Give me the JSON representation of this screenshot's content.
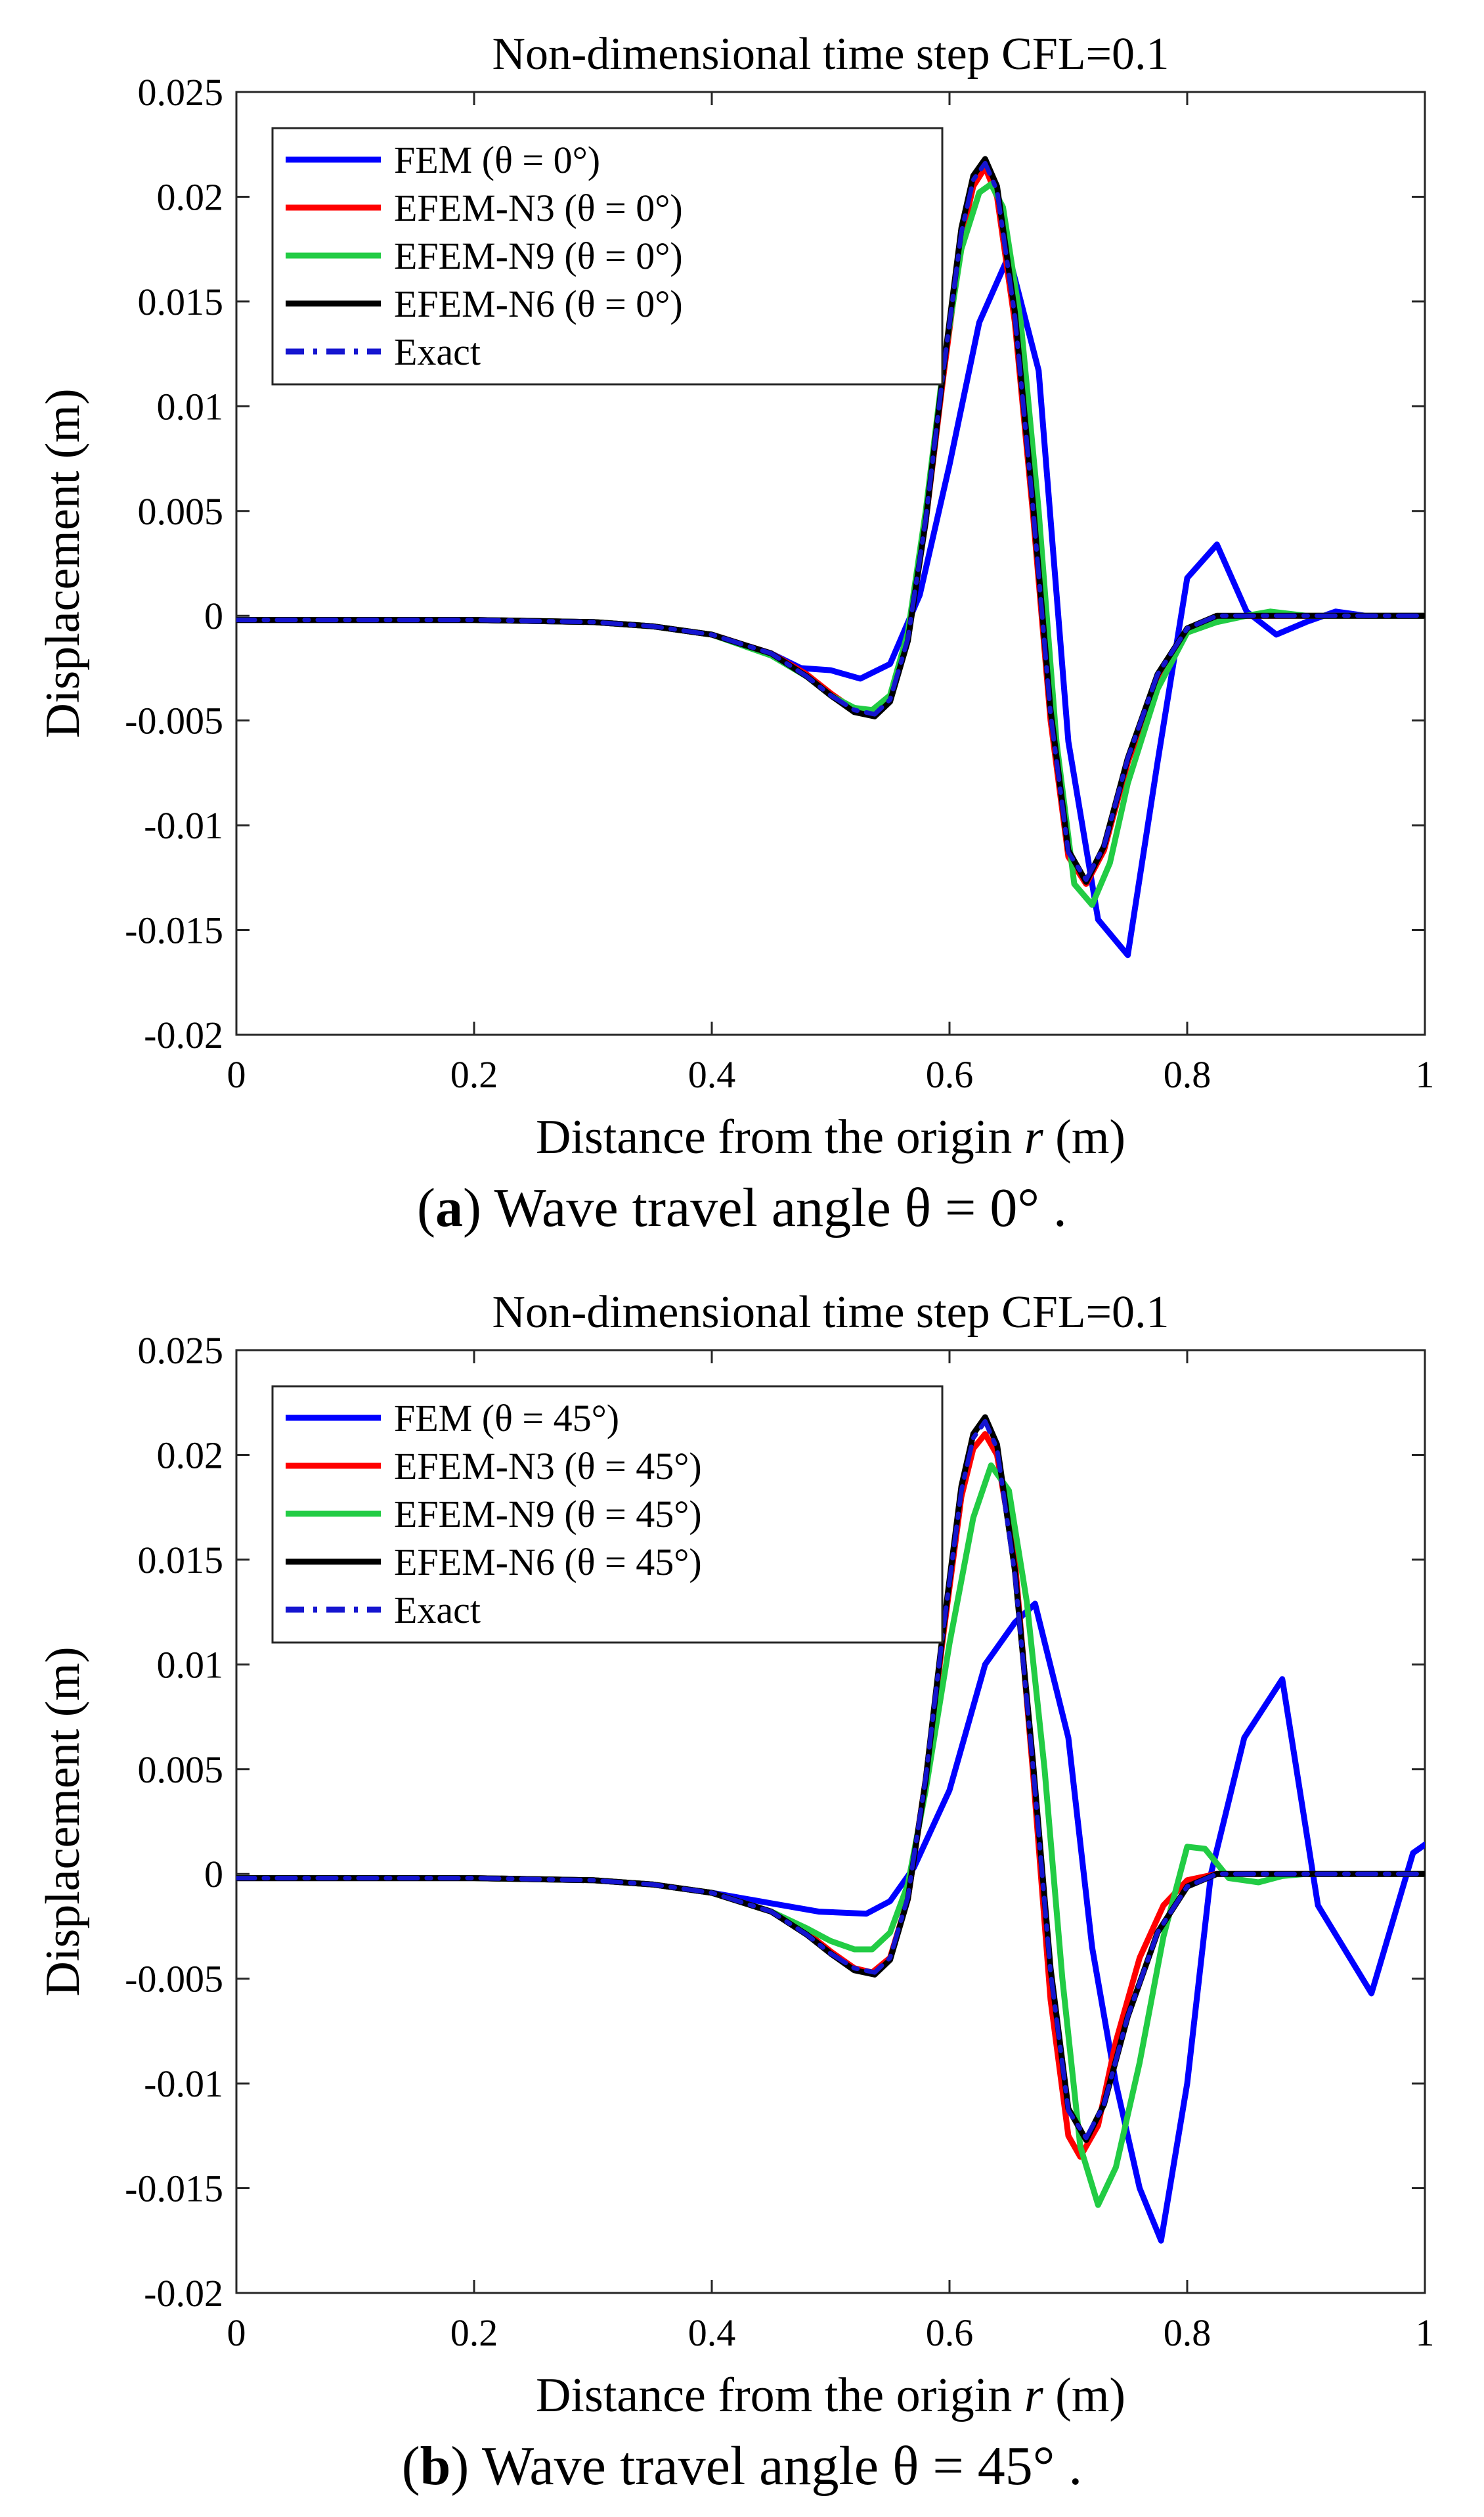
{
  "chart_data": [
    {
      "type": "line",
      "title": "Non-dimensional time step CFL=0.1",
      "xlabel_prefix": "Distance from the origin ",
      "xlabel_var": "r",
      "xlabel_suffix": " (m)",
      "ylabel": "Displacement (m)",
      "xlim": [
        0,
        1
      ],
      "ylim": [
        -0.02,
        0.025
      ],
      "xticks": [
        0,
        0.2,
        0.4,
        0.6,
        0.8,
        1
      ],
      "xtick_labels": [
        "0",
        "0.2",
        "0.4",
        "0.6",
        "0.8",
        "1"
      ],
      "yticks": [
        -0.02,
        -0.015,
        -0.01,
        -0.005,
        0,
        0.005,
        0.01,
        0.015,
        0.02,
        0.025
      ],
      "ytick_labels": [
        "-0.02",
        "-0.015",
        "-0.01",
        "-0.005",
        "0",
        "0.005",
        "0.01",
        "0.015",
        "0.02",
        "0.025"
      ],
      "legend_position": "top-left",
      "caption": {
        "label": "a",
        "text": ") Wave travel angle   θ = 0° ."
      },
      "series": [
        {
          "name": "FEM (θ = 0°)",
          "color": "#0000ff",
          "dashed": false,
          "x": [
            0,
            0.1,
            0.2,
            0.3,
            0.35,
            0.4,
            0.45,
            0.475,
            0.5,
            0.525,
            0.55,
            0.575,
            0.6,
            0.625,
            0.65,
            0.675,
            0.7,
            0.725,
            0.75,
            0.775,
            0.8,
            0.825,
            0.85,
            0.875,
            0.9,
            0.925,
            0.95,
            1.0
          ],
          "y": [
            -0.0002,
            -0.0002,
            -0.0002,
            -0.0003,
            -0.0005,
            -0.0009,
            -0.0018,
            -0.0025,
            -0.0026,
            -0.003,
            -0.0023,
            0.001,
            0.0072,
            0.014,
            0.0172,
            0.0117,
            -0.006,
            -0.0145,
            -0.0162,
            -0.007,
            0.0018,
            0.0034,
            0.0002,
            -0.0009,
            -0.0003,
            0.0002,
            0.0,
            0.0
          ]
        },
        {
          "name": "EFEM-N3 (θ = 0°)",
          "color": "#ff0000",
          "dashed": false,
          "x": [
            0,
            0.1,
            0.2,
            0.3,
            0.35,
            0.4,
            0.45,
            0.48,
            0.5,
            0.52,
            0.535,
            0.55,
            0.565,
            0.58,
            0.595,
            0.61,
            0.62,
            0.63,
            0.64,
            0.655,
            0.67,
            0.685,
            0.7,
            0.715,
            0.73,
            0.75,
            0.775,
            0.8,
            0.825,
            0.85,
            0.875,
            0.9,
            1.0
          ],
          "y": [
            -0.0002,
            -0.0002,
            -0.0002,
            -0.0003,
            -0.0005,
            -0.0009,
            -0.0018,
            -0.0028,
            -0.0037,
            -0.0045,
            -0.0047,
            -0.004,
            -0.001,
            0.0045,
            0.0115,
            0.018,
            0.0205,
            0.0214,
            0.02,
            0.014,
            0.005,
            -0.005,
            -0.0115,
            -0.0128,
            -0.0112,
            -0.007,
            -0.003,
            -0.0008,
            -0.0002,
            0.0,
            0.0,
            0.0,
            0.0
          ]
        },
        {
          "name": "EFEM-N9 (θ = 0°)",
          "color": "#22cc44",
          "dashed": false,
          "x": [
            0,
            0.1,
            0.2,
            0.3,
            0.35,
            0.4,
            0.45,
            0.48,
            0.5,
            0.52,
            0.535,
            0.55,
            0.565,
            0.58,
            0.595,
            0.61,
            0.625,
            0.635,
            0.645,
            0.66,
            0.675,
            0.69,
            0.705,
            0.72,
            0.735,
            0.75,
            0.775,
            0.8,
            0.825,
            0.85,
            0.87,
            0.9,
            1.0
          ],
          "y": [
            -0.0002,
            -0.0002,
            -0.0002,
            -0.0003,
            -0.0005,
            -0.0009,
            -0.0019,
            -0.0029,
            -0.0038,
            -0.0044,
            -0.0045,
            -0.0038,
            -0.0008,
            0.005,
            0.012,
            0.0175,
            0.0202,
            0.0206,
            0.0195,
            0.014,
            0.005,
            -0.006,
            -0.0128,
            -0.0138,
            -0.0118,
            -0.008,
            -0.0035,
            -0.0008,
            -0.0003,
            0.0,
            0.0002,
            0.0,
            0.0
          ]
        },
        {
          "name": "EFEM-N6 (θ = 0°)",
          "color": "#000000",
          "dashed": false,
          "x": [
            0,
            0.1,
            0.2,
            0.3,
            0.35,
            0.4,
            0.45,
            0.48,
            0.5,
            0.52,
            0.537,
            0.55,
            0.565,
            0.58,
            0.595,
            0.61,
            0.62,
            0.63,
            0.64,
            0.655,
            0.67,
            0.685,
            0.7,
            0.715,
            0.73,
            0.75,
            0.775,
            0.8,
            0.825,
            0.85,
            1.0
          ],
          "y": [
            -0.0002,
            -0.0002,
            -0.0002,
            -0.0003,
            -0.0005,
            -0.0009,
            -0.0018,
            -0.0029,
            -0.0038,
            -0.0046,
            -0.0048,
            -0.0041,
            -0.0012,
            0.0045,
            0.0118,
            0.0185,
            0.021,
            0.0218,
            0.0205,
            0.0145,
            0.0055,
            -0.0045,
            -0.0112,
            -0.0127,
            -0.011,
            -0.0068,
            -0.0028,
            -0.0006,
            0.0,
            0.0,
            0.0
          ]
        },
        {
          "name": "Exact",
          "color": "#1515d0",
          "dashed": true,
          "x": [
            0,
            0.1,
            0.2,
            0.3,
            0.35,
            0.4,
            0.45,
            0.48,
            0.5,
            0.52,
            0.537,
            0.55,
            0.565,
            0.58,
            0.595,
            0.61,
            0.62,
            0.63,
            0.64,
            0.655,
            0.67,
            0.685,
            0.7,
            0.715,
            0.73,
            0.75,
            0.775,
            0.8,
            0.825,
            0.85,
            1.0
          ],
          "y": [
            -0.0002,
            -0.0002,
            -0.0002,
            -0.0003,
            -0.0005,
            -0.0009,
            -0.0018,
            -0.0029,
            -0.0038,
            -0.0045,
            -0.0047,
            -0.004,
            -0.0011,
            0.0046,
            0.0118,
            0.0183,
            0.0208,
            0.0216,
            0.0203,
            0.0143,
            0.0053,
            -0.0047,
            -0.0113,
            -0.0126,
            -0.011,
            -0.0068,
            -0.0028,
            -0.0006,
            0.0,
            0.0,
            0.0
          ]
        }
      ]
    },
    {
      "type": "line",
      "title": "Non-dimensional time step CFL=0.1",
      "xlabel_prefix": "Distance from the origin ",
      "xlabel_var": "r",
      "xlabel_suffix": " (m)",
      "ylabel": "Displacement (m)",
      "xlim": [
        0,
        1
      ],
      "ylim": [
        -0.02,
        0.025
      ],
      "xticks": [
        0,
        0.2,
        0.4,
        0.6,
        0.8,
        1
      ],
      "xtick_labels": [
        "0",
        "0.2",
        "0.4",
        "0.6",
        "0.8",
        "1"
      ],
      "yticks": [
        -0.02,
        -0.015,
        -0.01,
        -0.005,
        0,
        0.005,
        0.01,
        0.015,
        0.02,
        0.025
      ],
      "ytick_labels": [
        "-0.02",
        "-0.015",
        "-0.01",
        "-0.005",
        "0",
        "0.005",
        "0.01",
        "0.015",
        "0.02",
        "0.025"
      ],
      "legend_position": "top-left",
      "caption": {
        "label": "b",
        "text": ") Wave travel angle   θ = 45° ."
      },
      "series": [
        {
          "name": "FEM (θ = 45°)",
          "color": "#0000ff",
          "dashed": false,
          "x": [
            0,
            0.1,
            0.2,
            0.3,
            0.35,
            0.4,
            0.45,
            0.49,
            0.53,
            0.55,
            0.57,
            0.6,
            0.63,
            0.655,
            0.672,
            0.7,
            0.72,
            0.74,
            0.76,
            0.778,
            0.8,
            0.82,
            0.848,
            0.88,
            0.91,
            0.955,
            0.99,
            1.0
          ],
          "y": [
            -0.0002,
            -0.0002,
            -0.0002,
            -0.0003,
            -0.0005,
            -0.0009,
            -0.0014,
            -0.0018,
            -0.0019,
            -0.0013,
            0.0003,
            0.004,
            0.01,
            0.012,
            0.0129,
            0.0065,
            -0.0035,
            -0.01,
            -0.015,
            -0.0175,
            -0.01,
            0.0,
            0.0065,
            0.0093,
            -0.0015,
            -0.0057,
            0.001,
            0.0014
          ]
        },
        {
          "name": "EFEM-N3 (θ = 45°)",
          "color": "#ff0000",
          "dashed": false,
          "x": [
            0,
            0.1,
            0.2,
            0.3,
            0.35,
            0.4,
            0.45,
            0.48,
            0.5,
            0.52,
            0.535,
            0.55,
            0.565,
            0.58,
            0.595,
            0.61,
            0.62,
            0.63,
            0.64,
            0.655,
            0.67,
            0.685,
            0.7,
            0.71,
            0.725,
            0.74,
            0.76,
            0.78,
            0.8,
            0.825,
            0.85,
            1.0
          ],
          "y": [
            -0.0002,
            -0.0002,
            -0.0002,
            -0.0003,
            -0.0005,
            -0.0009,
            -0.0018,
            -0.0028,
            -0.0037,
            -0.0045,
            -0.0047,
            -0.004,
            -0.0012,
            0.0045,
            0.0115,
            0.018,
            0.0203,
            0.021,
            0.02,
            0.015,
            0.005,
            -0.006,
            -0.0125,
            -0.0135,
            -0.012,
            -0.008,
            -0.004,
            -0.0015,
            -0.0003,
            0.0,
            0.0,
            0.0
          ]
        },
        {
          "name": "EFEM-N9 (θ = 45°)",
          "color": "#22cc44",
          "dashed": false,
          "x": [
            0,
            0.1,
            0.2,
            0.3,
            0.35,
            0.4,
            0.45,
            0.48,
            0.5,
            0.52,
            0.535,
            0.55,
            0.565,
            0.58,
            0.6,
            0.62,
            0.635,
            0.65,
            0.665,
            0.68,
            0.695,
            0.71,
            0.725,
            0.74,
            0.76,
            0.78,
            0.8,
            0.815,
            0.835,
            0.86,
            0.88,
            0.9,
            1.0
          ],
          "y": [
            -0.0002,
            -0.0002,
            -0.0002,
            -0.0003,
            -0.0005,
            -0.0009,
            -0.0018,
            -0.0026,
            -0.0032,
            -0.0036,
            -0.0036,
            -0.0028,
            -0.0005,
            0.004,
            0.011,
            0.017,
            0.0195,
            0.0183,
            0.013,
            0.005,
            -0.005,
            -0.013,
            -0.0158,
            -0.014,
            -0.009,
            -0.003,
            0.0013,
            0.0012,
            -0.0002,
            -0.0004,
            -0.0001,
            0.0,
            0.0
          ]
        },
        {
          "name": "EFEM-N6 (θ = 45°)",
          "color": "#000000",
          "dashed": false,
          "x": [
            0,
            0.1,
            0.2,
            0.3,
            0.35,
            0.4,
            0.45,
            0.48,
            0.5,
            0.52,
            0.537,
            0.55,
            0.565,
            0.58,
            0.595,
            0.61,
            0.62,
            0.63,
            0.64,
            0.655,
            0.67,
            0.685,
            0.7,
            0.715,
            0.73,
            0.75,
            0.775,
            0.8,
            0.825,
            0.85,
            1.0
          ],
          "y": [
            -0.0002,
            -0.0002,
            -0.0002,
            -0.0003,
            -0.0005,
            -0.0009,
            -0.0018,
            -0.0029,
            -0.0038,
            -0.0046,
            -0.0048,
            -0.0041,
            -0.0012,
            0.0045,
            0.0118,
            0.0185,
            0.021,
            0.0218,
            0.0205,
            0.0145,
            0.0055,
            -0.0045,
            -0.0112,
            -0.0127,
            -0.011,
            -0.0068,
            -0.0028,
            -0.0006,
            0.0,
            0.0,
            0.0
          ]
        },
        {
          "name": "Exact",
          "color": "#1515d0",
          "dashed": true,
          "x": [
            0,
            0.1,
            0.2,
            0.3,
            0.35,
            0.4,
            0.45,
            0.48,
            0.5,
            0.52,
            0.537,
            0.55,
            0.565,
            0.58,
            0.595,
            0.61,
            0.62,
            0.63,
            0.64,
            0.655,
            0.67,
            0.685,
            0.7,
            0.715,
            0.73,
            0.75,
            0.775,
            0.8,
            0.825,
            0.85,
            1.0
          ],
          "y": [
            -0.0002,
            -0.0002,
            -0.0002,
            -0.0003,
            -0.0005,
            -0.0009,
            -0.0018,
            -0.0029,
            -0.0038,
            -0.0045,
            -0.0047,
            -0.004,
            -0.0011,
            0.0046,
            0.0118,
            0.0183,
            0.0208,
            0.0216,
            0.0203,
            0.0143,
            0.0053,
            -0.0047,
            -0.0113,
            -0.0126,
            -0.011,
            -0.0068,
            -0.0028,
            -0.0006,
            0.0,
            0.0,
            0.0
          ]
        }
      ]
    }
  ]
}
